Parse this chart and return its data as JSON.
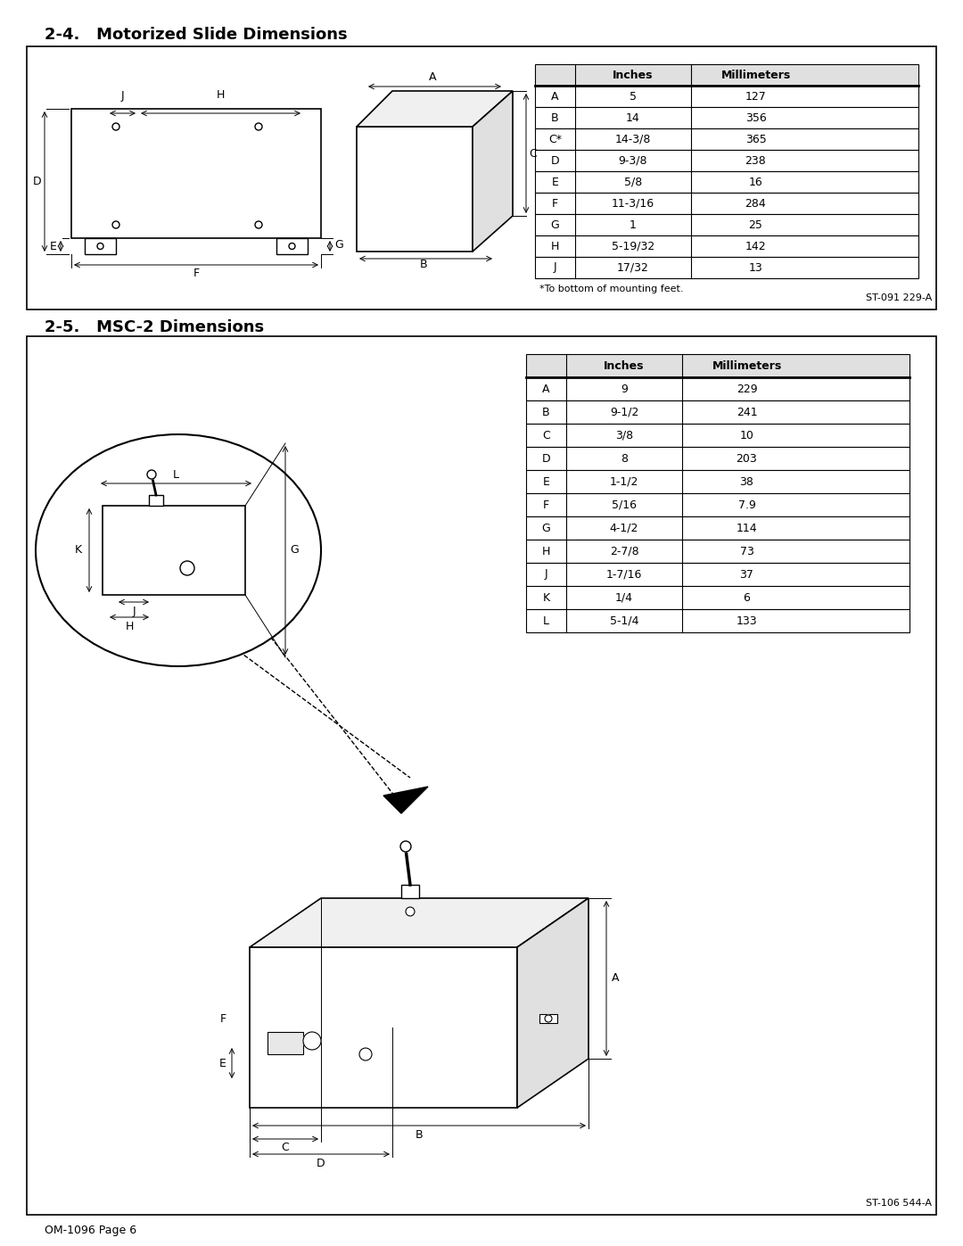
{
  "page_title_top": "2-4.   Motorized Slide Dimensions",
  "page_title_bottom": "2-5.   MSC-2 Dimensions",
  "footer": "OM-1096 Page 6",
  "section1": {
    "code": "ST-091 229-A",
    "table_headers": [
      "",
      "Inches",
      "Millimeters"
    ],
    "table_rows": [
      [
        "A",
        "5",
        "127"
      ],
      [
        "B",
        "14",
        "356"
      ],
      [
        "C*",
        "14-3/8",
        "365"
      ],
      [
        "D",
        "9-3/8",
        "238"
      ],
      [
        "E",
        "5/8",
        "16"
      ],
      [
        "F",
        "11-3/16",
        "284"
      ],
      [
        "G",
        "1",
        "25"
      ],
      [
        "H",
        "5-19/32",
        "142"
      ],
      [
        "J",
        "17/32",
        "13"
      ]
    ],
    "footnote": "*To bottom of mounting feet."
  },
  "section2": {
    "code": "ST-106 544-A",
    "table_headers": [
      "",
      "Inches",
      "Millimeters"
    ],
    "table_rows": [
      [
        "A",
        "9",
        "229"
      ],
      [
        "B",
        "9-1/2",
        "241"
      ],
      [
        "C",
        "3/8",
        "10"
      ],
      [
        "D",
        "8",
        "203"
      ],
      [
        "E",
        "1-1/2",
        "38"
      ],
      [
        "F",
        "5/16",
        "7.9"
      ],
      [
        "G",
        "4-1/2",
        "114"
      ],
      [
        "H",
        "2-7/8",
        "73"
      ],
      [
        "J",
        "1-7/16",
        "37"
      ],
      [
        "K",
        "1/4",
        "6"
      ],
      [
        "L",
        "5-1/4",
        "133"
      ]
    ]
  },
  "bg_color": "#ffffff",
  "border_color": "#000000",
  "table_header_bg": "#d0d0d0",
  "text_color": "#000000"
}
